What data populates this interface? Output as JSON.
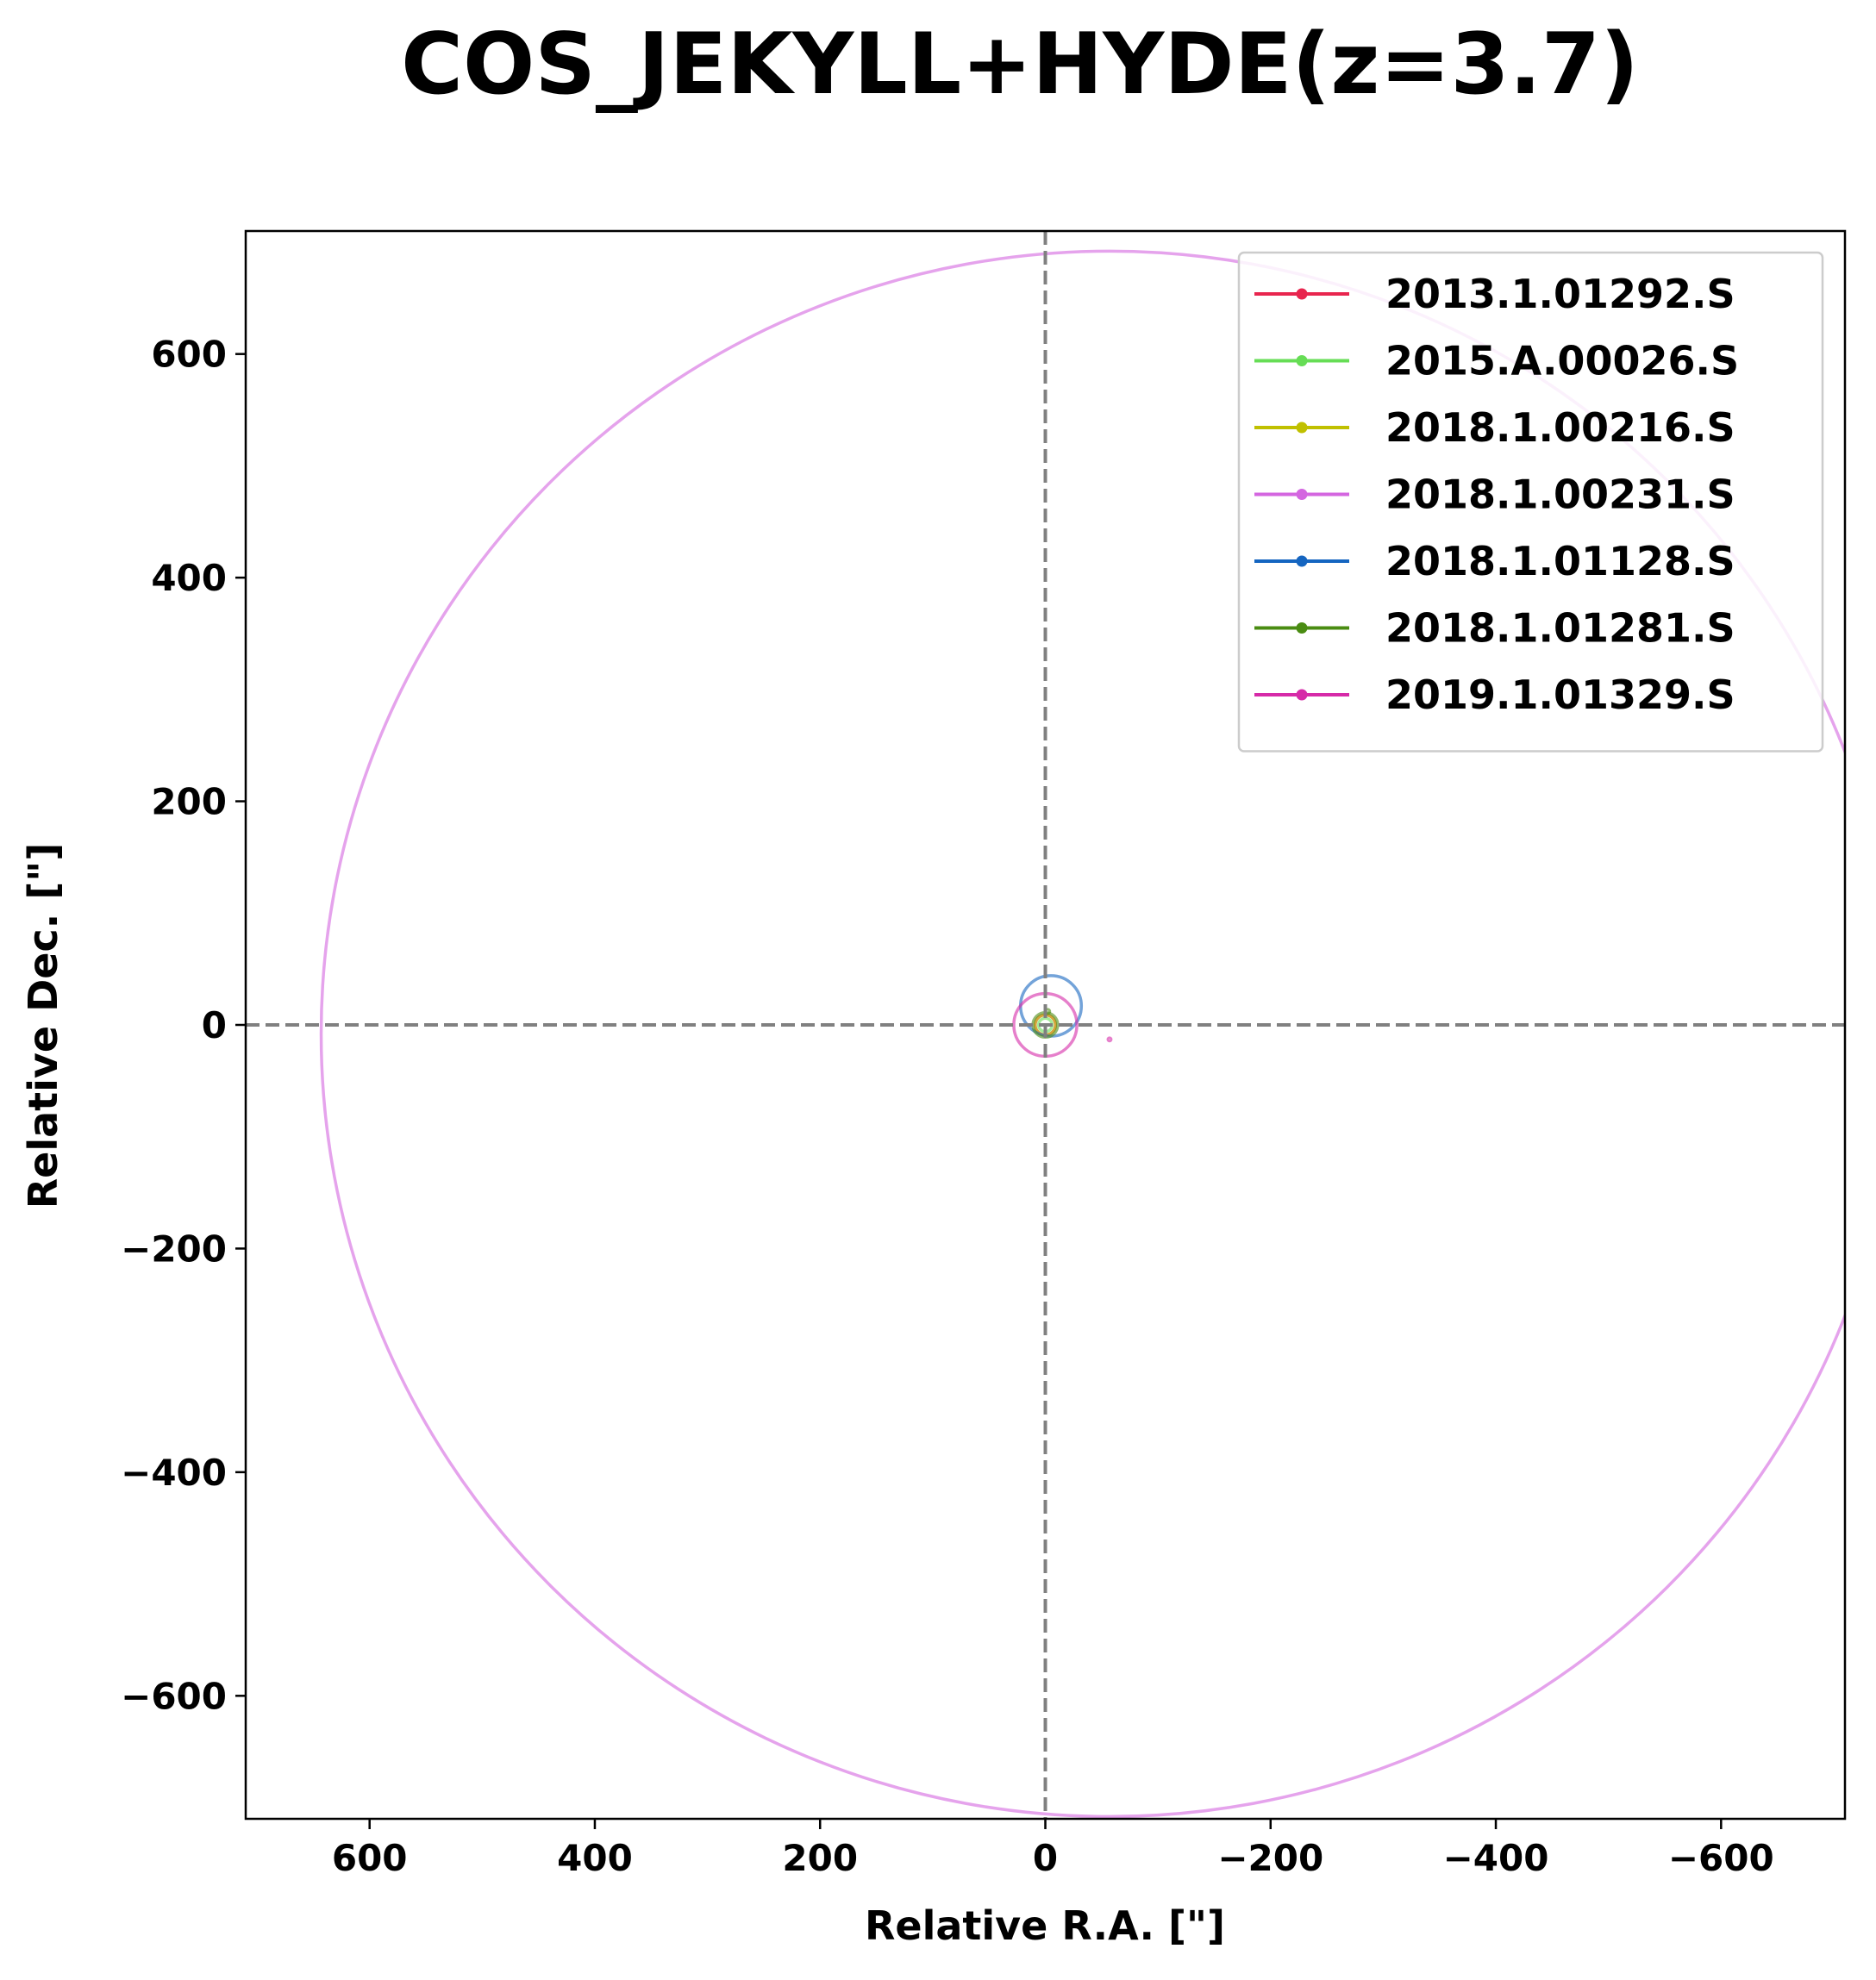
{
  "chart_data": {
    "type": "scatter",
    "title": "COS_JEKYLL+HYDE(z=3.7)",
    "xlabel": "Relative R.A. [\"]",
    "ylabel": "Relative Dec. [\"]",
    "xlim": [
      710,
      -710
    ],
    "ylim": [
      -710,
      710
    ],
    "x_ticks": [
      600,
      400,
      200,
      0,
      -200,
      -400,
      -600
    ],
    "y_ticks": [
      600,
      400,
      200,
      0,
      -200,
      -400,
      -600
    ],
    "x_tick_labels": [
      "600",
      "400",
      "200",
      "0",
      "−200",
      "−400",
      "−600"
    ],
    "y_tick_labels": [
      "600",
      "400",
      "200",
      "0",
      "−200",
      "−400",
      "−600"
    ],
    "reference_lines": {
      "x": 0,
      "y": 0,
      "style": "dashed",
      "color": "#808080"
    },
    "grid": false,
    "legend_position": "top-right",
    "series": [
      {
        "name": "2013.1.01292.S",
        "color": "#e8254e",
        "circles": [
          {
            "x": 0,
            "y": 0,
            "r": 9
          }
        ]
      },
      {
        "name": "2015.A.00026.S",
        "color": "#66dd55",
        "circles": [
          {
            "x": 0,
            "y": 0,
            "r": 6
          }
        ]
      },
      {
        "name": "2018.1.00216.S",
        "color": "#c0c000",
        "circles": [
          {
            "x": 0,
            "y": 0,
            "r": 9
          }
        ]
      },
      {
        "name": "2018.1.00231.S",
        "color": "#d466e0",
        "circles": [
          {
            "x": -57,
            "y": -8,
            "r": 700
          }
        ]
      },
      {
        "name": "2018.1.01128.S",
        "color": "#1565c0",
        "circles": [
          {
            "x": -5,
            "y": 17,
            "r": 27
          }
        ]
      },
      {
        "name": "2018.1.01281.S",
        "color": "#4a8c12",
        "circles": [
          {
            "x": 0,
            "y": 0,
            "r": 11
          },
          {
            "x": -2,
            "y": 12,
            "r": 2
          }
        ]
      },
      {
        "name": "2019.1.01329.S",
        "color": "#d62aa8",
        "circles": [
          {
            "x": 0,
            "y": 0,
            "r": 28
          },
          {
            "x": -57,
            "y": -13,
            "r": 1.5
          }
        ]
      }
    ]
  }
}
